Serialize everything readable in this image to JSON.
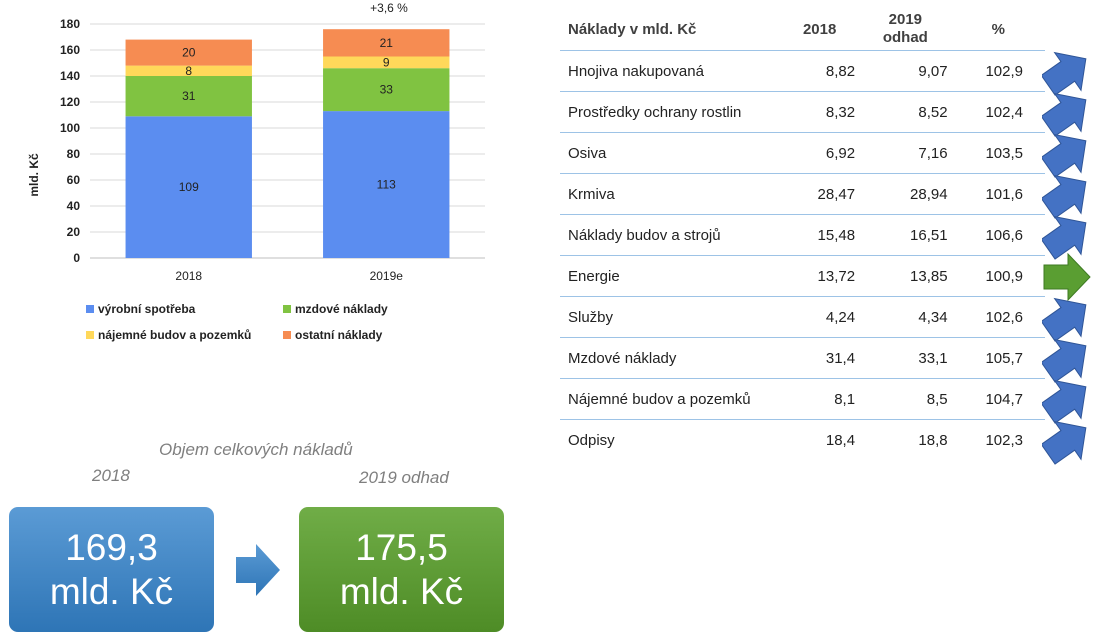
{
  "chart_data": {
    "type": "bar",
    "stacked": true,
    "categories": [
      "2018",
      "2019e"
    ],
    "series": [
      {
        "name": "výrobní spotřeba",
        "values": [
          109,
          113
        ],
        "color": "#5b8df0"
      },
      {
        "name": "mzdové náklady",
        "values": [
          31,
          33
        ],
        "color": "#80c341"
      },
      {
        "name": "nájemné budov a pozemků",
        "values": [
          8,
          9
        ],
        "color": "#ffd85a"
      },
      {
        "name": "ostatní náklady",
        "values": [
          20,
          21
        ],
        "color": "#f68c52"
      }
    ],
    "ylabel": "mld. Kč",
    "ylim": [
      0,
      180
    ],
    "yticks": [
      0,
      20,
      40,
      60,
      80,
      100,
      120,
      140,
      160,
      180
    ],
    "grid": true,
    "legend": "bottom",
    "annotation": "+3,6 %"
  },
  "table": {
    "headers": {
      "name": "Náklady v mld. Kč",
      "y2018": "2018",
      "y2019_line1": "2019",
      "y2019_line2": "odhad",
      "pct": "%"
    },
    "rows": [
      {
        "name": "Hnojiva nakupovaná",
        "v2018": "8,82",
        "v2019": "9,07",
        "pct": "102,9",
        "trend": "up"
      },
      {
        "name": "Prostředky ochrany rostlin",
        "v2018": "8,32",
        "v2019": "8,52",
        "pct": "102,4",
        "trend": "up"
      },
      {
        "name": "Osiva",
        "v2018": "6,92",
        "v2019": "7,16",
        "pct": "103,5",
        "trend": "up"
      },
      {
        "name": "Krmiva",
        "v2018": "28,47",
        "v2019": "28,94",
        "pct": "101,6",
        "trend": "up"
      },
      {
        "name": "Náklady budov a strojů",
        "v2018": "15,48",
        "v2019": "16,51",
        "pct": "106,6",
        "trend": "up"
      },
      {
        "name": "Energie",
        "v2018": "13,72",
        "v2019": "13,85",
        "pct": "100,9",
        "trend": "flat"
      },
      {
        "name": "Služby",
        "v2018": "4,24",
        "v2019": "4,34",
        "pct": "102,6",
        "trend": "up"
      },
      {
        "name": "Mzdové náklady",
        "v2018": "31,4",
        "v2019": "33,1",
        "pct": "105,7",
        "trend": "up"
      },
      {
        "name": "Nájemné budov a pozemků",
        "v2018": "8,1",
        "v2019": "8,5",
        "pct": "104,7",
        "trend": "up"
      },
      {
        "name": "Odpisy",
        "v2018": "18,4",
        "v2019": "18,8",
        "pct": "102,3",
        "trend": "up"
      }
    ],
    "trend_colors": {
      "up": "#4472c4",
      "flat": "#5a9e32"
    }
  },
  "totals": {
    "caption": "Objem celkových nákladů",
    "label_2018": "2018",
    "label_2019": "2019 odhad",
    "value_2018": "169,3",
    "value_2019": "175,5",
    "unit": "mld. Kč",
    "arrow_icon": "right-arrow-icon"
  }
}
